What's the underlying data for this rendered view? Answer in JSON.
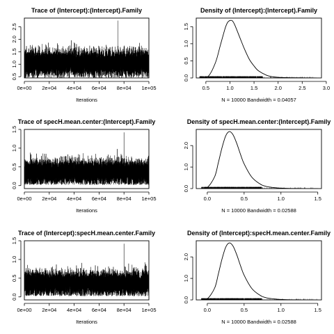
{
  "chart_data": [
    {
      "type": "line",
      "title": "Trace of (Intercept):(Intercept).Family",
      "xlabel": "Iterations",
      "xlim": [
        0,
        100000
      ],
      "ylim": [
        0.45,
        2.85
      ],
      "xticks": [
        0,
        20000,
        40000,
        60000,
        80000,
        100000
      ],
      "xtick_labels": [
        "0e+00",
        "2e+04",
        "4e+04",
        "6e+04",
        "8e+04",
        "1e+05"
      ],
      "yticks": [
        0.5,
        1.0,
        1.5,
        2.0,
        2.5
      ],
      "ytick_labels": [
        "0.5",
        "1.0",
        "1.5",
        "2.0",
        "2.5"
      ],
      "series": [
        {
          "mean": 1.05,
          "sd": 0.24,
          "min": 0.45,
          "max": 2.75,
          "n": 10000
        }
      ]
    },
    {
      "type": "area",
      "title": "Density of (Intercept):(Intercept).Family",
      "xlabel": "N = 10000   Bandwidth = 0.04057",
      "xlim": [
        0.3,
        2.9
      ],
      "ylim": [
        0,
        1.75
      ],
      "xticks": [
        0.5,
        1.0,
        1.5,
        2.0,
        2.5,
        3.0
      ],
      "xtick_labels": [
        "0.5",
        "1.0",
        "1.5",
        "2.0",
        "2.5",
        "3.0"
      ],
      "yticks": [
        0.0,
        0.5,
        1.0,
        1.5
      ],
      "ytick_labels": [
        "0.0",
        "0.5",
        "1.0",
        "1.5"
      ],
      "rug": true,
      "series": [
        {
          "x": [
            0.35,
            0.55,
            0.7,
            0.8,
            0.9,
            0.95,
            1.0,
            1.05,
            1.1,
            1.2,
            1.3,
            1.4,
            1.5,
            1.6,
            1.8,
            2.0,
            2.4,
            2.8
          ],
          "y": [
            0.0,
            0.05,
            0.45,
            0.95,
            1.45,
            1.62,
            1.68,
            1.67,
            1.55,
            1.2,
            0.85,
            0.55,
            0.35,
            0.2,
            0.06,
            0.02,
            0.005,
            0.0
          ]
        }
      ]
    },
    {
      "type": "line",
      "title": "Trace of specH.mean.center:(Intercept).Family",
      "xlabel": "Iterations",
      "xlim": [
        0,
        100000
      ],
      "ylim": [
        -0.08,
        1.5
      ],
      "xticks": [
        0,
        20000,
        40000,
        60000,
        80000,
        100000
      ],
      "xtick_labels": [
        "0e+00",
        "2e+04",
        "4e+04",
        "6e+04",
        "8e+04",
        "1e+05"
      ],
      "yticks": [
        0.0,
        0.5,
        1.0,
        1.5
      ],
      "ytick_labels": [
        "0.0",
        "0.5",
        "1.0",
        "1.5"
      ],
      "series": [
        {
          "mean": 0.36,
          "sd": 0.15,
          "min": 0.02,
          "max": 1.42,
          "n": 10000
        }
      ]
    },
    {
      "type": "area",
      "title": "Density of specH.mean.center:(Intercept).Family",
      "xlabel": "N = 10000   Bandwidth = 0.02588",
      "xlim": [
        -0.15,
        1.55
      ],
      "ylim": [
        0,
        2.75
      ],
      "xticks": [
        0.0,
        0.5,
        1.0,
        1.5
      ],
      "xtick_labels": [
        "0.0",
        "0.5",
        "1.0",
        "1.5"
      ],
      "yticks": [
        0.0,
        1.0,
        2.0
      ],
      "ytick_labels": [
        "0.0",
        "1.0",
        "2.0"
      ],
      "rug": true,
      "series": [
        {
          "x": [
            -0.1,
            0.0,
            0.1,
            0.15,
            0.2,
            0.25,
            0.3,
            0.35,
            0.4,
            0.45,
            0.5,
            0.6,
            0.7,
            0.8,
            1.0,
            1.2,
            1.5
          ],
          "y": [
            0.0,
            0.05,
            0.55,
            1.2,
            1.9,
            2.45,
            2.65,
            2.5,
            2.1,
            1.6,
            1.15,
            0.55,
            0.25,
            0.1,
            0.02,
            0.005,
            0.0
          ]
        }
      ]
    },
    {
      "type": "line",
      "title": "Trace of (Intercept):specH.mean.center.Family",
      "xlabel": "Iterations",
      "xlim": [
        0,
        100000
      ],
      "ylim": [
        -0.08,
        1.5
      ],
      "xticks": [
        0,
        20000,
        40000,
        60000,
        80000,
        100000
      ],
      "xtick_labels": [
        "0e+00",
        "2e+04",
        "4e+04",
        "6e+04",
        "8e+04",
        "1e+05"
      ],
      "yticks": [
        0.0,
        0.5,
        1.0,
        1.5
      ],
      "ytick_labels": [
        "0.0",
        "0.5",
        "1.0",
        "1.5"
      ],
      "series": [
        {
          "mean": 0.36,
          "sd": 0.15,
          "min": 0.02,
          "max": 1.42,
          "n": 10000
        }
      ]
    },
    {
      "type": "area",
      "title": "Density of (Intercept):specH.mean.center.Family",
      "xlabel": "N = 10000   Bandwidth = 0.02588",
      "xlim": [
        -0.15,
        1.55
      ],
      "ylim": [
        0,
        2.75
      ],
      "xticks": [
        0.0,
        0.5,
        1.0,
        1.5
      ],
      "xtick_labels": [
        "0.0",
        "0.5",
        "1.0",
        "1.5"
      ],
      "yticks": [
        0.0,
        1.0,
        2.0
      ],
      "ytick_labels": [
        "0.0",
        "1.0",
        "2.0"
      ],
      "rug": true,
      "series": [
        {
          "x": [
            -0.1,
            0.0,
            0.1,
            0.15,
            0.2,
            0.25,
            0.3,
            0.35,
            0.4,
            0.45,
            0.5,
            0.6,
            0.7,
            0.8,
            1.0,
            1.2,
            1.5
          ],
          "y": [
            0.0,
            0.05,
            0.55,
            1.2,
            1.9,
            2.45,
            2.65,
            2.5,
            2.1,
            1.6,
            1.15,
            0.55,
            0.25,
            0.1,
            0.02,
            0.005,
            0.0
          ]
        }
      ]
    }
  ]
}
